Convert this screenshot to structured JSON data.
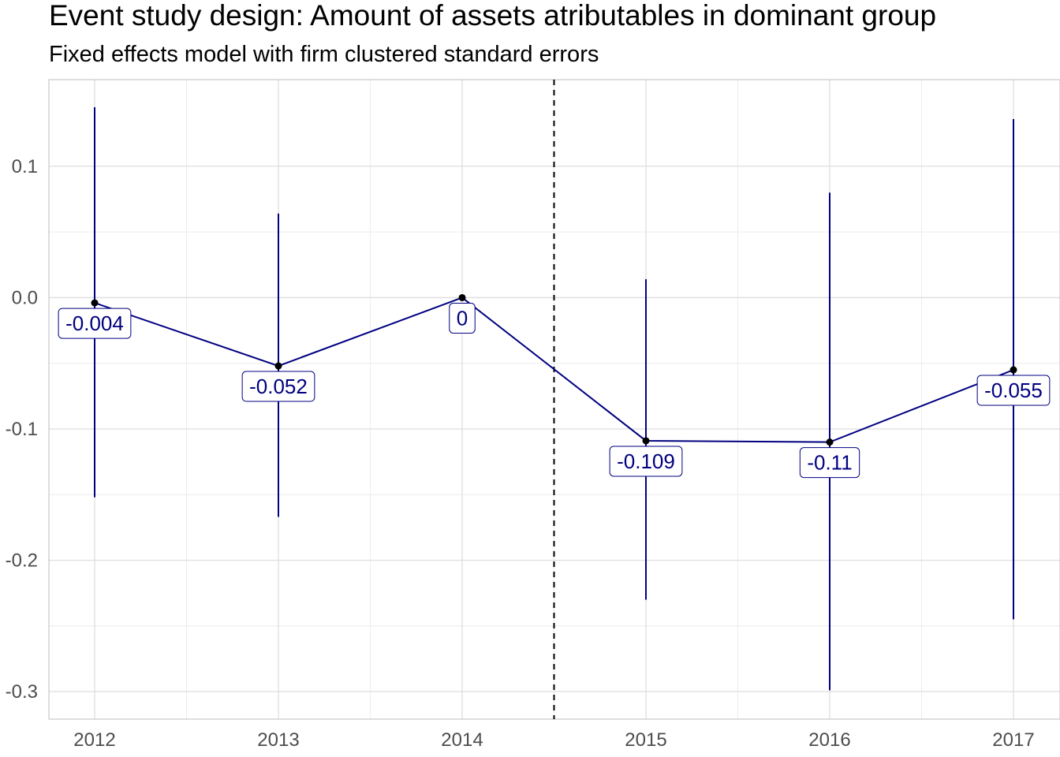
{
  "chart_data": {
    "type": "line",
    "title": "Event study design: Amount of assets atributables in dominant group",
    "subtitle": "Fixed effects model with firm clustered standard errors",
    "xlabel": "",
    "ylabel": "",
    "categories": [
      "2012",
      "2013",
      "2014",
      "2015",
      "2016",
      "2017"
    ],
    "estimates": [
      -0.004,
      -0.052,
      0,
      -0.109,
      -0.11,
      -0.055
    ],
    "data_labels": [
      "-0.004",
      "-0.052",
      "0",
      "-0.109",
      "-0.11",
      "-0.055"
    ],
    "ci_lower": [
      -0.152,
      -0.167,
      0,
      -0.23,
      -0.299,
      -0.245
    ],
    "ci_upper": [
      0.145,
      0.064,
      0,
      0.014,
      0.08,
      0.136
    ],
    "y_ticks": [
      0.1,
      0.0,
      -0.1,
      -0.2,
      -0.3
    ],
    "y_tick_labels": [
      "0.1",
      "0.0",
      "-0.1",
      "-0.2",
      "-0.3"
    ],
    "ylim": [
      -0.321,
      0.166
    ],
    "event_line_x": 2014.5,
    "grid": true,
    "colors": {
      "series": "#000080",
      "point": "#000000",
      "event_line": "#000000",
      "grid": "#dedede"
    }
  }
}
